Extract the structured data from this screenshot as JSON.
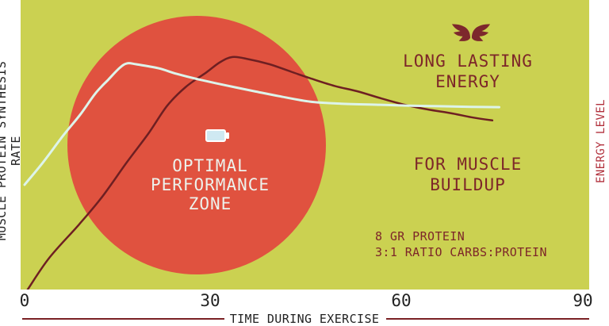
{
  "colors": {
    "plot_background": "#cbd151",
    "zone_circle": "#e0523f",
    "energy_curve": "#6e1f22",
    "protein_curve": "#ddf4ea",
    "maroon_text": "#7d2629",
    "energy_axis_label": "#b1303c",
    "ink": "#222222",
    "battery_fill": "#cfe9f2",
    "white": "#ffffff"
  },
  "icons": {
    "wings": "wings-icon",
    "battery": "battery-icon"
  },
  "labels": {
    "optimal_zone": "OPTIMAL\nPERFORMANCE\nZONE",
    "long_lasting": "LONG LASTING\nENERGY",
    "muscle_buildup": "FOR MUSCLE\nBUILDUP",
    "protein_note": "8 GR PROTEIN\n3:1 RATIO CARBS:PROTEIN"
  },
  "axis": {
    "x_title": "TIME DURING EXERCISE",
    "y_left": "MUSCLE PROTEIN SYNTHESIS RATE",
    "y_right": "ENERGY LEVEL",
    "ticks": [
      "0",
      "30",
      "60",
      "90"
    ]
  },
  "chart_data": {
    "type": "line",
    "title": "",
    "xlabel": "TIME DURING EXERCISE",
    "ylabel_left": "MUSCLE PROTEIN SYNTHESIS RATE",
    "ylabel_right": "ENERGY LEVEL",
    "x_ticks": [
      0,
      30,
      60,
      90
    ],
    "xlim": [
      0,
      91
    ],
    "ylim": [
      0,
      100
    ],
    "grid": false,
    "legend_position": "none",
    "series": [
      {
        "name": "ENERGY LEVEL",
        "axis": "right",
        "color": "#6e1f22",
        "width": 2.5,
        "points": [
          [
            0.5,
            0
          ],
          [
            4,
            11
          ],
          [
            8.8,
            22.5
          ],
          [
            12.5,
            32
          ],
          [
            16.5,
            44
          ],
          [
            20,
            54
          ],
          [
            23,
            63.5
          ],
          [
            26,
            70
          ],
          [
            29.3,
            75
          ],
          [
            31.5,
            78.5
          ],
          [
            33.5,
            80.3
          ],
          [
            36,
            79.6
          ],
          [
            39.5,
            77.8
          ],
          [
            43,
            75.2
          ],
          [
            46,
            73
          ],
          [
            50,
            70.3
          ],
          [
            53.6,
            68.5
          ],
          [
            57.5,
            66
          ],
          [
            61.3,
            63.8
          ],
          [
            65,
            62.2
          ],
          [
            69,
            60.8
          ],
          [
            72,
            59.5
          ],
          [
            75.4,
            58.4
          ]
        ]
      },
      {
        "name": "MUSCLE PROTEIN SYNTHESIS RATE",
        "axis": "left",
        "color": "#ddf4ea",
        "width": 3,
        "points": [
          [
            0,
            36.2
          ],
          [
            3,
            44
          ],
          [
            6.3,
            53.4
          ],
          [
            9,
            60.5
          ],
          [
            11.4,
            67.7
          ],
          [
            13.5,
            72.5
          ],
          [
            15.3,
            76.5
          ],
          [
            16.5,
            78.1
          ],
          [
            18,
            77.8
          ],
          [
            21.6,
            76.4
          ],
          [
            24.5,
            74.5
          ],
          [
            28,
            72.6
          ],
          [
            32.5,
            70.5
          ],
          [
            37,
            68.5
          ],
          [
            41,
            66.8
          ],
          [
            46,
            64.9
          ],
          [
            51,
            64.2
          ],
          [
            57.4,
            63.8
          ],
          [
            62,
            63.5
          ],
          [
            67.6,
            63.3
          ],
          [
            72,
            63.1
          ],
          [
            76.5,
            63
          ]
        ]
      }
    ],
    "annotations": [
      {
        "text": "OPTIMAL PERFORMANCE ZONE",
        "type": "zone-circle",
        "x_center_min": 28,
        "y_center_pct": 50
      },
      {
        "text": "LONG LASTING ENERGY",
        "refers_to": "ENERGY LEVEL curve"
      },
      {
        "text": "FOR MUSCLE BUILDUP",
        "refers_to": "MUSCLE PROTEIN SYNTHESIS RATE curve"
      },
      {
        "text": "8 GR PROTEIN"
      },
      {
        "text": "3:1 RATIO CARBS:PROTEIN"
      }
    ]
  }
}
